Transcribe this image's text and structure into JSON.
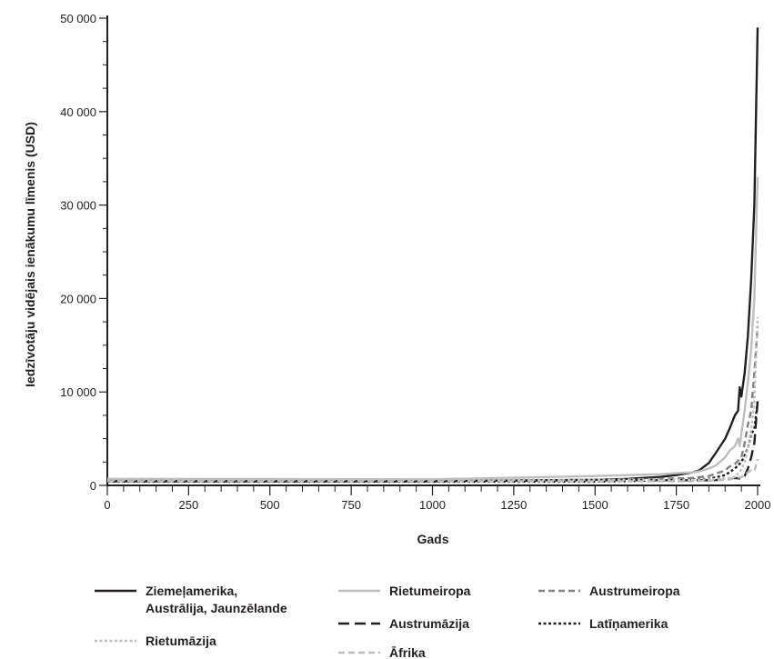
{
  "chart_data": {
    "type": "line",
    "title": "",
    "xlabel": "Gads",
    "ylabel": "Iedzīvotāju vidējais ienākumu līmenis (USD)",
    "xlim": [
      0,
      2000
    ],
    "ylim": [
      0,
      50000
    ],
    "x_ticks": [
      0,
      250,
      500,
      750,
      1000,
      1250,
      1500,
      1750,
      2000
    ],
    "x_tick_labels": [
      "0",
      "250",
      "500",
      "750",
      "1000",
      "1250",
      "1500",
      "1750",
      "2000"
    ],
    "y_ticks": [
      0,
      10000,
      20000,
      30000,
      40000,
      50000
    ],
    "y_tick_labels": [
      "0",
      "10 000",
      "20 000",
      "30 000",
      "40 000",
      "50 000"
    ],
    "grid": false,
    "legend_position": "bottom",
    "series": [
      {
        "name": "Ziemeļamerika, Austrālija, Jaunzēlande",
        "label_lines": [
          "Ziemeļamerika,",
          "Austrālija, Jaunzēlande"
        ],
        "color": "#231f20",
        "dash": "solid",
        "x": [
          0,
          1000,
          1500,
          1600,
          1700,
          1750,
          1800,
          1820,
          1850,
          1870,
          1900,
          1913,
          1930,
          1940,
          1945,
          1950,
          1960,
          1970,
          1980,
          1990,
          2000
        ],
        "y": [
          450,
          450,
          600,
          700,
          900,
          1100,
          1400,
          1600,
          2400,
          3400,
          5000,
          6000,
          7500,
          8000,
          10500,
          9500,
          12000,
          16000,
          22000,
          30000,
          49000
        ]
      },
      {
        "name": "Rietumeiropa",
        "color": "#bcbec0",
        "dash": "solid",
        "x": [
          0,
          1000,
          1500,
          1600,
          1700,
          1750,
          1800,
          1820,
          1850,
          1870,
          1900,
          1913,
          1930,
          1940,
          1945,
          1950,
          1960,
          1970,
          1980,
          1990,
          2000
        ],
        "y": [
          700,
          650,
          1000,
          1100,
          1200,
          1300,
          1400,
          1500,
          1800,
          2100,
          3000,
          3700,
          4200,
          5000,
          4200,
          5500,
          8000,
          11000,
          14500,
          20000,
          33000
        ]
      },
      {
        "name": "Austrumeiropa",
        "color": "#808285",
        "dash": "dashed",
        "x": [
          0,
          1000,
          1500,
          1600,
          1700,
          1750,
          1800,
          1850,
          1900,
          1913,
          1930,
          1950,
          1960,
          1970,
          1980,
          1990,
          2000
        ],
        "y": [
          500,
          450,
          600,
          650,
          700,
          750,
          800,
          1000,
          1600,
          2000,
          2300,
          3000,
          4500,
          6500,
          8000,
          12000,
          17000
        ]
      },
      {
        "name": "Austrumāzija",
        "color": "#231f20",
        "dash": "longdash",
        "x": [
          0,
          1000,
          1500,
          1600,
          1700,
          1800,
          1850,
          1900,
          1913,
          1930,
          1950,
          1960,
          1970,
          1980,
          1990,
          2000
        ],
        "y": [
          450,
          450,
          550,
          550,
          550,
          550,
          550,
          600,
          650,
          800,
          700,
          1000,
          1800,
          3000,
          4500,
          9000
        ]
      },
      {
        "name": "Latīņamerika",
        "color": "#231f20",
        "dash": "dotted",
        "x": [
          0,
          1000,
          1500,
          1600,
          1700,
          1800,
          1850,
          1900,
          1913,
          1930,
          1950,
          1960,
          1970,
          1980,
          1990,
          2000
        ],
        "y": [
          400,
          400,
          400,
          450,
          550,
          650,
          700,
          1100,
          1400,
          1800,
          2500,
          3200,
          4000,
          5500,
          6000,
          9000
        ]
      },
      {
        "name": "Rietumāzija",
        "color": "#bcbec0",
        "dash": "dotted",
        "x": [
          0,
          1000,
          1500,
          1600,
          1700,
          1800,
          1850,
          1900,
          1913,
          1930,
          1950,
          1960,
          1970,
          1980,
          1990,
          2000
        ],
        "y": [
          550,
          600,
          600,
          600,
          600,
          600,
          650,
          750,
          800,
          900,
          1700,
          2500,
          4000,
          6000,
          9000,
          18000
        ]
      },
      {
        "name": "Āfrika",
        "color": "#bcbec0",
        "dash": "dashed",
        "x": [
          0,
          1000,
          1500,
          1600,
          1700,
          1800,
          1850,
          1900,
          1913,
          1930,
          1950,
          1960,
          1970,
          1980,
          1990,
          2000
        ],
        "y": [
          450,
          450,
          450,
          450,
          450,
          450,
          500,
          600,
          650,
          800,
          900,
          1100,
          1400,
          1600,
          1500,
          2800
        ]
      }
    ]
  }
}
